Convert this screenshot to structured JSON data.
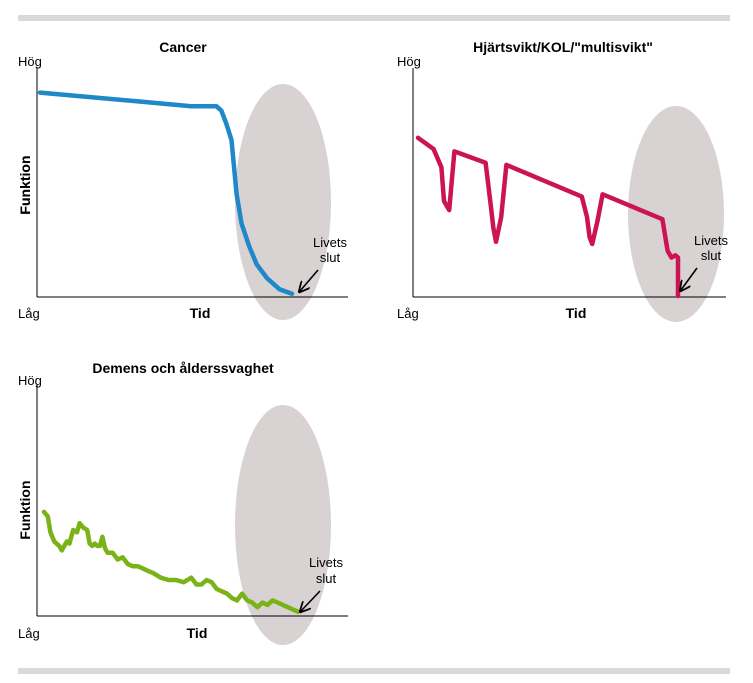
{
  "chart_data": [
    {
      "type": "line",
      "title": "Cancer",
      "xlabel": "Tid",
      "ylabel": "Funktion",
      "y_high_label": "Hög",
      "y_low_label": "Låg",
      "annotation": {
        "line1": "Livets",
        "line2": "slut"
      },
      "series": [
        {
          "color": "#1e88c8",
          "x": [
            0,
            20,
            40,
            60,
            70,
            72,
            74,
            76,
            78,
            80,
            83,
            86,
            90,
            95,
            100
          ],
          "y": [
            90,
            88,
            86,
            84,
            84,
            82,
            76,
            69,
            45,
            32,
            22,
            14,
            8,
            3,
            1
          ]
        }
      ],
      "highlight": "end-of-life ellipse"
    },
    {
      "type": "line",
      "title": "Hjärtsvikt/KOL/\"multisvikt\"",
      "xlabel": "Tid",
      "ylabel": "Funktion",
      "y_high_label": "Hög",
      "y_low_label": "Låg",
      "annotation": {
        "line1": "Livets",
        "line2": "slut"
      },
      "series": [
        {
          "color": "#cc1455",
          "x": [
            0,
            6,
            9,
            10,
            12,
            14,
            26,
            28,
            29,
            30,
            32,
            34,
            63,
            65,
            66,
            67,
            69,
            71,
            94,
            96,
            97.5,
            99,
            100,
            100
          ],
          "y": [
            70,
            65,
            57,
            42,
            38,
            64,
            59,
            40,
            30,
            24,
            35,
            58,
            44,
            35,
            26,
            23,
            33,
            45,
            34,
            20,
            17,
            18,
            17,
            0
          ]
        }
      ],
      "highlight": "end-of-life ellipse"
    },
    {
      "type": "line",
      "title": "Demens och ålderssvaghet",
      "xlabel": "Tid",
      "ylabel": "Funktion",
      "y_high_label": "Hög",
      "y_low_label": "Låg",
      "annotation": {
        "line1": "Livets",
        "line2": "slut"
      },
      "series": [
        {
          "color": "#7ab317",
          "x": [
            0,
            1.5,
            2.5,
            4,
            6,
            7,
            9,
            10,
            11.5,
            13,
            14,
            15.5,
            17,
            18,
            19,
            20,
            21,
            22,
            23,
            24,
            25,
            27,
            29,
            31,
            33,
            35,
            37,
            39,
            41,
            43,
            46,
            49,
            52,
            55,
            58,
            60,
            62,
            64,
            66,
            68,
            70,
            72,
            74,
            76,
            78,
            80,
            82,
            84,
            86,
            88,
            90,
            92,
            94,
            96,
            98,
            100
          ],
          "y": [
            45,
            43,
            36,
            32,
            30,
            28,
            32,
            31,
            37,
            36,
            40,
            38,
            37,
            31,
            30,
            31,
            30,
            30,
            34,
            29,
            27,
            27,
            24,
            25,
            22,
            21,
            21,
            20,
            19,
            18,
            16,
            15,
            15,
            14,
            16,
            13,
            13,
            15,
            14,
            11,
            10,
            9,
            7,
            6,
            9,
            6,
            5,
            3,
            5,
            4,
            6,
            5,
            4,
            3,
            2,
            1
          ]
        }
      ],
      "highlight": "end-of-life ellipse"
    }
  ]
}
